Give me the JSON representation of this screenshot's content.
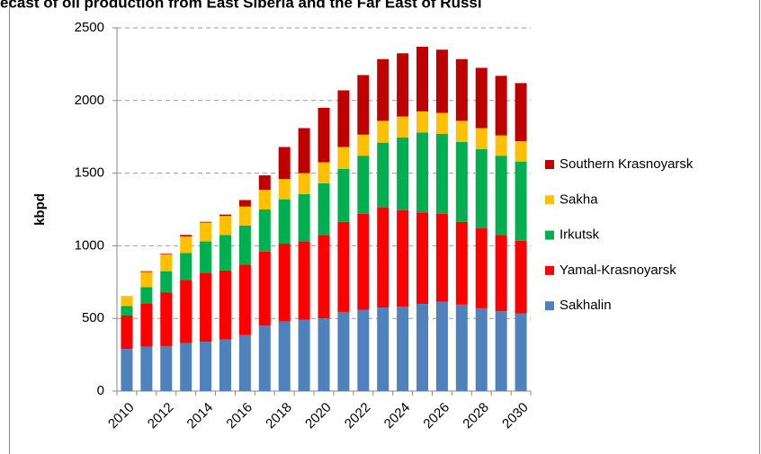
{
  "chart_data": {
    "type": "bar",
    "stacked": true,
    "title": "ecast of oil production from East Siberia and the Far East of Russi",
    "y_label": "kbpd",
    "categories": [
      "2010",
      null,
      "2012",
      null,
      "2014",
      null,
      "2016",
      null,
      "2018",
      null,
      "2020",
      null,
      "2022",
      null,
      "2024",
      null,
      "2026",
      null,
      "2028",
      null,
      "2030"
    ],
    "series": [
      {
        "name": "Sakhalin",
        "color": "#4f81bd",
        "values": [
          290,
          305,
          310,
          330,
          340,
          355,
          385,
          450,
          480,
          490,
          500,
          545,
          560,
          575,
          580,
          600,
          615,
          595,
          570,
          550,
          535
        ]
      },
      {
        "name": "Yamal-Krasnoyarsk",
        "color": "#ff0000",
        "values": [
          230,
          300,
          370,
          435,
          475,
          475,
          485,
          510,
          535,
          540,
          575,
          620,
          660,
          690,
          665,
          630,
          605,
          570,
          550,
          525,
          500
        ]
      },
      {
        "name": "Irkutsk",
        "color": "#00b050",
        "values": [
          65,
          110,
          145,
          185,
          215,
          245,
          270,
          290,
          305,
          325,
          355,
          365,
          400,
          445,
          500,
          550,
          550,
          550,
          545,
          545,
          545
        ]
      },
      {
        "name": "Sakha",
        "color": "#ffc000",
        "values": [
          70,
          105,
          115,
          115,
          130,
          130,
          130,
          135,
          140,
          145,
          145,
          150,
          145,
          150,
          145,
          145,
          145,
          145,
          145,
          140,
          140
        ]
      },
      {
        "name": "Southern Krasnoyarsk",
        "color": "#c00000",
        "values": [
          0,
          5,
          5,
          10,
          5,
          10,
          45,
          100,
          220,
          310,
          375,
          390,
          410,
          425,
          435,
          445,
          435,
          425,
          415,
          410,
          400
        ]
      }
    ],
    "ylim": [
      0,
      2500
    ],
    "yticks": [
      0,
      500,
      1000,
      1500,
      2000,
      2500
    ],
    "grid": true,
    "legend": "right"
  }
}
